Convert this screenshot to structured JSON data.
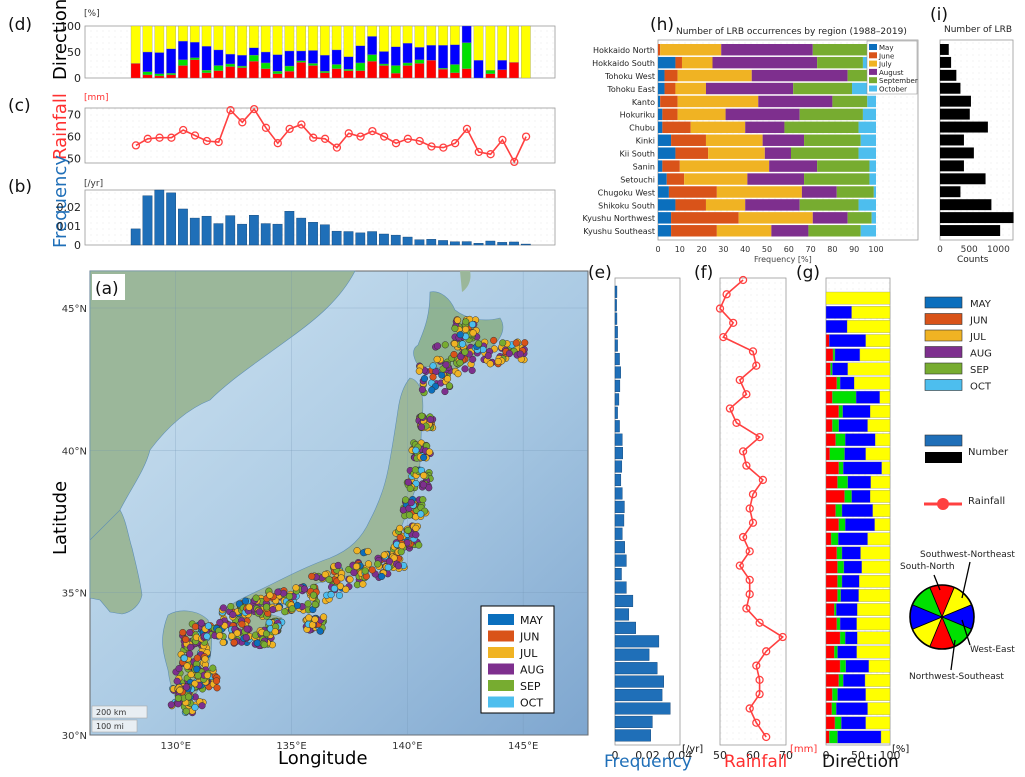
{
  "figure": {
    "panel_labels": {
      "a": "(a)",
      "b": "(b)",
      "c": "(c)",
      "d": "(d)",
      "e": "(e)",
      "f": "(f)",
      "g": "(g)",
      "h": "(h)",
      "i": "(i)"
    }
  },
  "colors": {
    "may": "#0b6fbd",
    "jun": "#d95319",
    "jul": "#f0b323",
    "aug": "#7e2f8e",
    "sep": "#77ac30",
    "oct": "#4dbeee",
    "dir_sn": "#ff0000",
    "dir_nwse": "#00e000",
    "dir_we": "#0000ff",
    "dir_swne": "#ffff00",
    "freq": "#1f6fb8",
    "rain": "#ff4040",
    "number_black": "#000000"
  },
  "legend_map": {
    "items": [
      {
        "key": "may",
        "label": "MAY"
      },
      {
        "key": "jun",
        "label": "JUN"
      },
      {
        "key": "jul",
        "label": "JUL"
      },
      {
        "key": "aug",
        "label": "AUG"
      },
      {
        "key": "sep",
        "label": "SEP"
      },
      {
        "key": "oct",
        "label": "OCT"
      }
    ],
    "scale_km": "200 km",
    "scale_mi": "100 mi"
  },
  "legend_right": {
    "months": [
      {
        "key": "may",
        "label": "MAY"
      },
      {
        "key": "jun",
        "label": "JUN"
      },
      {
        "key": "jul",
        "label": "JUL"
      },
      {
        "key": "aug",
        "label": "AUG"
      },
      {
        "key": "sep",
        "label": "SEP"
      },
      {
        "key": "oct",
        "label": "OCT"
      }
    ],
    "number_label": "Number",
    "rainfall_label": "Rainfall",
    "direction_pie": {
      "sn": "South-North",
      "swne": "Southwest-Northeast",
      "we": "West-East",
      "nwse": "Northwest-Southeast"
    }
  },
  "chart_data": [
    {
      "id": "a",
      "type": "scatter",
      "title": "",
      "xlabel": "Longitude",
      "ylabel": "Latitude",
      "xlim": [
        126.3,
        147.8
      ],
      "ylim": [
        30,
        46.3
      ],
      "xticks": [
        "130°E",
        "135°E",
        "140°E",
        "145°E"
      ],
      "xtick_values": [
        130,
        135,
        140,
        145
      ],
      "yticks": [
        "30°N",
        "35°N",
        "40°N",
        "45°N"
      ],
      "ytick_values": [
        30,
        35,
        40,
        45
      ],
      "legend": [
        "MAY",
        "JUN",
        "JUL",
        "AUG",
        "SEP",
        "OCT"
      ],
      "legend_position": "bottom-right"
    },
    {
      "id": "b",
      "type": "bar",
      "ylabel": "Frequency",
      "unit": "[/yr]",
      "ylim": [
        0,
        0.029
      ],
      "yticks": [
        "0",
        "0.01",
        "0.02"
      ],
      "ytick_values": [
        0,
        0.01,
        0.02
      ],
      "x_start": 127.2,
      "x_step": 0.56,
      "values": [
        0.0085,
        0.026,
        0.029,
        0.0275,
        0.019,
        0.0142,
        0.0152,
        0.0113,
        0.0155,
        0.011,
        0.0157,
        0.0113,
        0.011,
        0.0178,
        0.0142,
        0.012,
        0.0107,
        0.0073,
        0.0071,
        0.0064,
        0.0071,
        0.0058,
        0.0052,
        0.0042,
        0.0028,
        0.003,
        0.0024,
        0.0017,
        0.0018,
        0.0009,
        0.0021,
        0.0014,
        0.0016,
        0.0005
      ]
    },
    {
      "id": "c",
      "type": "line",
      "ylabel": "Rainfall",
      "unit": "[mm]",
      "ylim": [
        48,
        73
      ],
      "yticks": [
        "50",
        "60",
        "70"
      ],
      "ytick_values": [
        50,
        60,
        70
      ],
      "values": [
        56,
        59,
        59.5,
        59.5,
        63,
        60.5,
        58,
        57.5,
        72,
        66.5,
        72.5,
        64,
        57,
        63.5,
        65.5,
        59.5,
        59,
        55,
        61.5,
        60,
        62.5,
        60,
        57,
        59,
        58,
        55.5,
        55,
        57,
        63.5,
        53,
        52,
        58.5,
        48.5,
        60
      ]
    },
    {
      "id": "d",
      "type": "bar",
      "stacked": true,
      "ylabel": "Direction",
      "unit": "[%]",
      "ylim": [
        0,
        100
      ],
      "yticks": [
        "0",
        "50",
        "100"
      ],
      "ytick_values": [
        0,
        50,
        100
      ],
      "series_order": [
        "South-North",
        "Northwest-Southeast",
        "West-East",
        "Southwest-Northeast"
      ],
      "values": [
        [
          28,
          0,
          0,
          72
        ],
        [
          6,
          6,
          38,
          50
        ],
        [
          4,
          4,
          41,
          51
        ],
        [
          6,
          3,
          47,
          44
        ],
        [
          24,
          11,
          36,
          29
        ],
        [
          35,
          4,
          30,
          31
        ],
        [
          10,
          5,
          46,
          39
        ],
        [
          14,
          10,
          30,
          46
        ],
        [
          22,
          5,
          19,
          54
        ],
        [
          20,
          3,
          21,
          56
        ],
        [
          32,
          12,
          14,
          42
        ],
        [
          18,
          11,
          21,
          50
        ],
        [
          8,
          5,
          32,
          55
        ],
        [
          13,
          10,
          29,
          48
        ],
        [
          30,
          3,
          19,
          48
        ],
        [
          24,
          4,
          25,
          47
        ],
        [
          10,
          3,
          31,
          56
        ],
        [
          18,
          8,
          28,
          46
        ],
        [
          14,
          3,
          24,
          59
        ],
        [
          14,
          15,
          33,
          38
        ],
        [
          32,
          13,
          35,
          20
        ],
        [
          24,
          3,
          24,
          49
        ],
        [
          9,
          15,
          36,
          40
        ],
        [
          24,
          5,
          38,
          33
        ],
        [
          28,
          7,
          24,
          41
        ],
        [
          34,
          0,
          29,
          37
        ],
        [
          17,
          2,
          44,
          37
        ],
        [
          10,
          16,
          38,
          36
        ],
        [
          18,
          50,
          32,
          0
        ],
        [
          0,
          0,
          34,
          66
        ],
        [
          8,
          7,
          0,
          85
        ],
        [
          16,
          0,
          18,
          66
        ],
        [
          30,
          0,
          0,
          70
        ],
        [
          0,
          0,
          0,
          100
        ]
      ]
    },
    {
      "id": "e",
      "type": "bar",
      "orientation": "horizontal",
      "xlabel": "Frequency",
      "unit": "[/yr]",
      "xlim": [
        0,
        0.04
      ],
      "xticks": [
        "0",
        "0.02",
        "0.04"
      ],
      "xtick_values": [
        0,
        0.02,
        0.04
      ],
      "values_top_to_bottom": [
        0.0012,
        0.001,
        0.0012,
        0.0016,
        0.0016,
        0.0028,
        0.0035,
        0.003,
        0.0024,
        0.0016,
        0.0028,
        0.0045,
        0.0048,
        0.0042,
        0.0036,
        0.0045,
        0.0058,
        0.0055,
        0.0045,
        0.006,
        0.007,
        0.004,
        0.007,
        0.011,
        0.0085,
        0.0128,
        0.027,
        0.021,
        0.026,
        0.03,
        0.029,
        0.034,
        0.023,
        0.022
      ]
    },
    {
      "id": "f",
      "type": "line",
      "orientation": "vertical",
      "xlabel": "Rainfall",
      "unit": "[mm]",
      "xlim": [
        50,
        70
      ],
      "xticks": [
        "50",
        "60",
        "70"
      ],
      "xtick_values": [
        50,
        60,
        70
      ],
      "values_top_to_bottom": [
        57,
        52,
        50,
        54,
        51,
        60,
        61,
        56,
        58,
        53,
        55,
        62,
        57,
        58,
        63,
        60,
        59,
        60,
        57,
        59,
        56,
        59,
        59,
        58,
        62,
        69,
        64,
        61,
        62,
        62,
        59,
        61,
        64
      ]
    },
    {
      "id": "g",
      "type": "bar",
      "orientation": "horizontal",
      "stacked": true,
      "xlabel": "Direction",
      "unit": "[%]",
      "xlim": [
        0,
        100
      ],
      "xticks": [
        "0",
        "50",
        "100"
      ],
      "xtick_values": [
        0,
        50,
        100
      ],
      "series_order": [
        "South-North",
        "Northwest-Southeast",
        "West-East",
        "Southwest-Northeast"
      ],
      "values_top_to_bottom": [
        [
          0,
          0,
          0,
          100
        ],
        [
          0,
          0,
          40,
          60
        ],
        [
          0,
          0,
          33,
          67
        ],
        [
          5,
          0,
          57,
          38
        ],
        [
          11,
          3,
          39,
          47
        ],
        [
          7,
          3,
          24,
          66
        ],
        [
          17,
          5,
          22,
          56
        ],
        [
          10,
          37,
          37,
          16
        ],
        [
          20,
          6,
          43,
          31
        ],
        [
          10,
          10,
          45,
          35
        ],
        [
          15,
          15,
          47,
          23
        ],
        [
          6,
          23,
          33,
          38
        ],
        [
          20,
          7,
          60,
          13
        ],
        [
          18,
          16,
          36,
          30
        ],
        [
          29,
          11,
          29,
          31
        ],
        [
          15,
          10,
          48,
          27
        ],
        [
          20,
          10,
          46,
          24
        ],
        [
          8,
          11,
          46,
          35
        ],
        [
          17,
          8,
          29,
          46
        ],
        [
          18,
          10,
          28,
          44
        ],
        [
          18,
          7,
          27,
          48
        ],
        [
          18,
          5,
          28,
          49
        ],
        [
          13,
          3,
          33,
          51
        ],
        [
          17,
          5,
          26,
          52
        ],
        [
          22,
          8,
          19,
          51
        ],
        [
          13,
          5,
          30,
          52
        ],
        [
          22,
          9,
          36,
          33
        ],
        [
          20,
          7,
          34,
          39
        ],
        [
          10,
          8,
          44,
          38
        ],
        [
          9,
          7,
          49,
          35
        ],
        [
          14,
          10,
          38,
          38
        ],
        [
          5,
          13,
          68,
          14
        ]
      ]
    },
    {
      "id": "h",
      "type": "bar",
      "orientation": "horizontal",
      "stacked": true,
      "title": "Number of LRB occurrences by region (1988–2019)",
      "xlabel": "Frequency [%]",
      "xlim": [
        0,
        100
      ],
      "xticks": [
        "0",
        "10",
        "20",
        "30",
        "40",
        "50",
        "60",
        "70",
        "80",
        "90",
        "100"
      ],
      "legend": [
        "May",
        "June",
        "July",
        "August",
        "September",
        "October"
      ],
      "legend_position": "top-right",
      "categories": [
        "Hokkaido North",
        "Hokkaido South",
        "Tohoku West",
        "Tohoku East",
        "Kanto",
        "Hokuriku",
        "Chubu",
        "Kinki",
        "Kii South",
        "Sanin",
        "Setouchi",
        "Chugoku West",
        "Shikoku South",
        "Kyushu Northwest",
        "Kyushu Southeast"
      ],
      "series": [
        {
          "name": "May",
          "values": [
            0,
            8,
            3,
            3,
            1,
            2,
            2,
            6,
            8,
            2,
            4,
            5,
            8,
            6,
            6
          ]
        },
        {
          "name": "June",
          "values": [
            1,
            3,
            6,
            5,
            8,
            7,
            13,
            16,
            15,
            8,
            8,
            22,
            14,
            31,
            21
          ]
        },
        {
          "name": "July",
          "values": [
            28,
            14,
            34,
            14,
            37,
            22,
            25,
            26,
            26,
            41,
            29,
            39,
            18,
            34,
            25
          ]
        },
        {
          "name": "August",
          "values": [
            42,
            48,
            44,
            40,
            34,
            34,
            18,
            19,
            12,
            22,
            26,
            16,
            25,
            16,
            17
          ]
        },
        {
          "name": "September",
          "values": [
            27,
            21,
            10,
            27,
            16,
            29,
            34,
            26,
            31,
            24,
            30,
            17,
            27,
            11,
            24
          ]
        },
        {
          "name": "October",
          "values": [
            2,
            6,
            3,
            11,
            4,
            6,
            8,
            7,
            8,
            3,
            3,
            1,
            8,
            2,
            7
          ]
        }
      ]
    },
    {
      "id": "i",
      "type": "bar",
      "orientation": "horizontal",
      "title": "Number of LRB",
      "xlabel": "Counts",
      "xlim": [
        0,
        1250
      ],
      "xticks": [
        "0",
        "500",
        "1000"
      ],
      "xtick_values": [
        0,
        500,
        1000
      ],
      "categories": [
        "Hokkaido North",
        "Hokkaido South",
        "Tohoku West",
        "Tohoku East",
        "Kanto",
        "Hokuriku",
        "Chubu",
        "Kinki",
        "Kii South",
        "Sanin",
        "Setouchi",
        "Chugoku West",
        "Shikoku South",
        "Kyushu Northwest",
        "Kyushu Southeast"
      ],
      "values": [
        150,
        190,
        280,
        350,
        530,
        510,
        820,
        410,
        580,
        410,
        780,
        350,
        880,
        1260,
        1030
      ]
    }
  ]
}
